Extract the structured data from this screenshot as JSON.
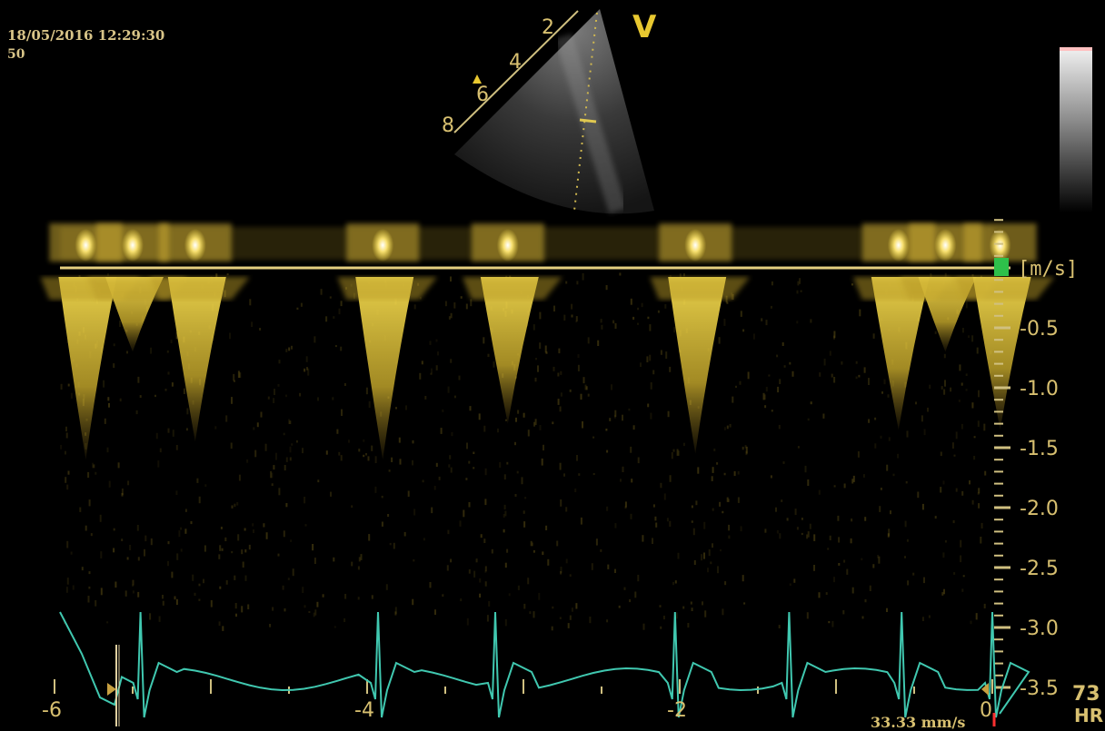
{
  "header": {
    "datetime": "18/05/2016 12:29:30",
    "frame": "50",
    "view_letter": "V"
  },
  "sector": {
    "depth_labels": [
      "2",
      "4",
      "6",
      "8"
    ]
  },
  "velocity_scale": {
    "unit": "[m/s]",
    "labels": [
      "-0.5",
      "-1.0",
      "-1.5",
      "-2.0",
      "-2.5",
      "-3.0",
      "-3.5"
    ]
  },
  "time_axis": {
    "labels": [
      "-6",
      "-4",
      "-2",
      "0"
    ]
  },
  "footer": {
    "sweep_speed": "33.33 mm/s",
    "hr_value": "73",
    "hr_label": "HR"
  },
  "colors": {
    "doppler": "#f0d848",
    "ecg": "#40c8b0",
    "scale_text": "#d8c070",
    "baseline_marker": "#2ec04a"
  },
  "spectrum_beats": [
    {
      "t": -5.8,
      "peak": -1.6
    },
    {
      "t": -5.5,
      "peak": -0.7
    },
    {
      "t": -5.1,
      "peak": -1.45
    },
    {
      "t": -3.9,
      "peak": -1.6
    },
    {
      "t": -3.1,
      "peak": -1.3
    },
    {
      "t": -1.9,
      "peak": -1.55
    },
    {
      "t": -0.6,
      "peak": -1.35
    },
    {
      "t": -0.3,
      "peak": -0.7
    },
    {
      "t": 0.05,
      "peak": -1.35
    }
  ]
}
